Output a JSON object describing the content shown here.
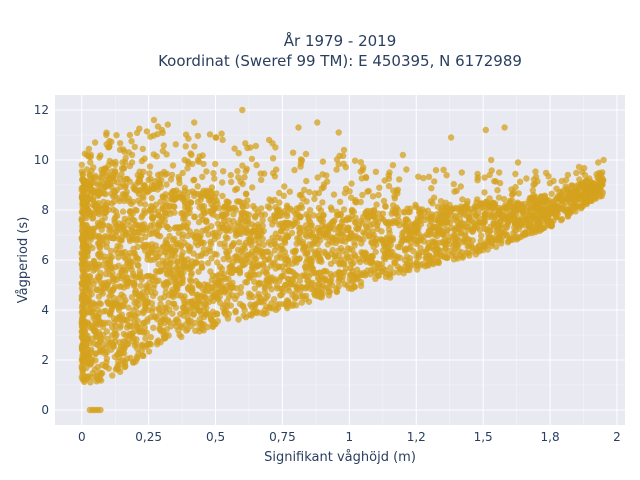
{
  "chart_data": {
    "type": "scatter",
    "title_lines": [
      "År 1979 - 2019",
      "Koordinat (Sweref 99 TM): E 450395, N 6172989"
    ],
    "xlabel": "Signifikant våghöjd (m)",
    "ylabel": "Vågperiod (s)",
    "xlim": [
      -0.1,
      2.03
    ],
    "ylim": [
      -0.6,
      12.6
    ],
    "x_ticks": [
      0,
      0.25,
      0.5,
      0.75,
      1,
      1.25,
      1.5,
      1.75,
      2
    ],
    "x_tick_labels": [
      "0",
      "0,25",
      "0,5",
      "0,75",
      "1",
      "1,2",
      "1,5",
      "1,8",
      "2"
    ],
    "y_ticks": [
      0,
      2,
      4,
      6,
      8,
      10,
      12
    ],
    "y_tick_labels": [
      "0",
      "2",
      "4",
      "6",
      "8",
      "10",
      "12"
    ],
    "grid": true,
    "legend": "none",
    "marker_color": "#d4a21e",
    "plot_background": "#e9e9f2",
    "point_cloud": {
      "x_range": [
        0,
        1.95
      ],
      "lower_boundary": [
        [
          0.0,
          1.1
        ],
        [
          0.05,
          1.1
        ],
        [
          0.1,
          1.2
        ],
        [
          0.2,
          1.9
        ],
        [
          0.3,
          2.7
        ],
        [
          0.5,
          3.3
        ],
        [
          0.75,
          4.0
        ],
        [
          1.0,
          4.8
        ],
        [
          1.25,
          5.6
        ],
        [
          1.5,
          6.3
        ],
        [
          1.75,
          7.3
        ],
        [
          1.95,
          8.6
        ]
      ],
      "upper_boundary": [
        [
          0.0,
          10.3
        ],
        [
          0.1,
          11.2
        ],
        [
          0.25,
          11.5
        ],
        [
          0.5,
          11.3
        ],
        [
          0.75,
          10.6
        ],
        [
          1.0,
          10.2
        ],
        [
          1.25,
          9.8
        ],
        [
          1.5,
          9.6
        ],
        [
          1.75,
          9.6
        ],
        [
          1.95,
          10.0
        ]
      ],
      "dense_upper": [
        [
          0.0,
          9.0
        ],
        [
          0.1,
          9.6
        ],
        [
          0.25,
          9.0
        ],
        [
          0.5,
          8.5
        ],
        [
          0.75,
          8.0
        ],
        [
          1.0,
          8.0
        ],
        [
          1.25,
          8.0
        ],
        [
          1.5,
          8.2
        ],
        [
          1.75,
          8.6
        ],
        [
          1.95,
          9.3
        ]
      ]
    },
    "outlier_points": [
      {
        "x": 0.03,
        "y": 0
      },
      {
        "x": 0.04,
        "y": 0
      },
      {
        "x": 0.05,
        "y": 0
      },
      {
        "x": 0.06,
        "y": 0
      },
      {
        "x": 0.07,
        "y": 0
      },
      {
        "x": 0.6,
        "y": 12.0
      },
      {
        "x": 0.81,
        "y": 11.3
      },
      {
        "x": 0.42,
        "y": 11.5
      },
      {
        "x": 0.27,
        "y": 11.6
      },
      {
        "x": 0.88,
        "y": 11.5
      },
      {
        "x": 0.96,
        "y": 11.1
      },
      {
        "x": 1.38,
        "y": 10.9
      },
      {
        "x": 1.51,
        "y": 11.2
      },
      {
        "x": 1.58,
        "y": 11.3
      },
      {
        "x": 1.53,
        "y": 10.0
      },
      {
        "x": 1.63,
        "y": 9.9
      },
      {
        "x": 1.42,
        "y": 9.5
      },
      {
        "x": 1.48,
        "y": 9.3
      },
      {
        "x": 1.56,
        "y": 9.5
      },
      {
        "x": 1.2,
        "y": 10.2
      },
      {
        "x": 1.15,
        "y": 9.5
      },
      {
        "x": 0.7,
        "y": 10.8
      },
      {
        "x": 0.63,
        "y": 10.5
      },
      {
        "x": 0.5,
        "y": 10.9
      },
      {
        "x": 0.18,
        "y": 11.0
      },
      {
        "x": 0.05,
        "y": 10.7
      },
      {
        "x": 0.02,
        "y": 10.2
      },
      {
        "x": 1.93,
        "y": 9.9
      },
      {
        "x": 1.95,
        "y": 10.0
      },
      {
        "x": 1.88,
        "y": 9.4
      },
      {
        "x": 1.81,
        "y": 9.2
      },
      {
        "x": 0.98,
        "y": 10.4
      },
      {
        "x": 1.05,
        "y": 9.6
      }
    ]
  }
}
